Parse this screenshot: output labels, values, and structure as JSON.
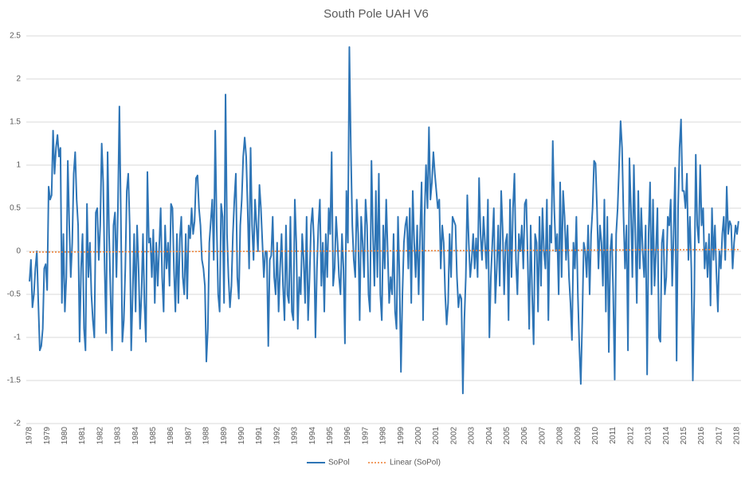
{
  "chart_data": {
    "type": "line",
    "title": "South Pole UAH V6",
    "categories": [
      "1978",
      null,
      null,
      null,
      null,
      null,
      null,
      null,
      null,
      null,
      null,
      null,
      "1979",
      null,
      null,
      null,
      null,
      null,
      null,
      null,
      null,
      null,
      null,
      null,
      "1980",
      null,
      null,
      null,
      null,
      null,
      null,
      null,
      null,
      null,
      null,
      null,
      "1981",
      null,
      null,
      null,
      null,
      null,
      null,
      null,
      null,
      null,
      null,
      null,
      "1982",
      null,
      null,
      null,
      null,
      null,
      null,
      null,
      null,
      null,
      null,
      null,
      "1983",
      null,
      null,
      null,
      null,
      null,
      null,
      null,
      null,
      null,
      null,
      null,
      "1984",
      null,
      null,
      null,
      null,
      null,
      null,
      null,
      null,
      null,
      null,
      null,
      "1985",
      null,
      null,
      null,
      null,
      null,
      null,
      null,
      null,
      null,
      null,
      null,
      "1986",
      null,
      null,
      null,
      null,
      null,
      null,
      null,
      null,
      null,
      null,
      null,
      "1987",
      null,
      null,
      null,
      null,
      null,
      null,
      null,
      null,
      null,
      null,
      null,
      "1988",
      null,
      null,
      null,
      null,
      null,
      null,
      null,
      null,
      null,
      null,
      null,
      "1989",
      null,
      null,
      null,
      null,
      null,
      null,
      null,
      null,
      null,
      null,
      null,
      "1990",
      null,
      null,
      null,
      null,
      null,
      null,
      null,
      null,
      null,
      null,
      null,
      "1991",
      null,
      null,
      null,
      null,
      null,
      null,
      null,
      null,
      null,
      null,
      null,
      "1992",
      null,
      null,
      null,
      null,
      null,
      null,
      null,
      null,
      null,
      null,
      null,
      "1993",
      null,
      null,
      null,
      null,
      null,
      null,
      null,
      null,
      null,
      null,
      null,
      "1994",
      null,
      null,
      null,
      null,
      null,
      null,
      null,
      null,
      null,
      null,
      null,
      "1995",
      null,
      null,
      null,
      null,
      null,
      null,
      null,
      null,
      null,
      null,
      null,
      "1996",
      null,
      null,
      null,
      null,
      null,
      null,
      null,
      null,
      null,
      null,
      null,
      "1997",
      null,
      null,
      null,
      null,
      null,
      null,
      null,
      null,
      null,
      null,
      null,
      "1998",
      null,
      null,
      null,
      null,
      null,
      null,
      null,
      null,
      null,
      null,
      null,
      "1999",
      null,
      null,
      null,
      null,
      null,
      null,
      null,
      null,
      null,
      null,
      null,
      "2000",
      null,
      null,
      null,
      null,
      null,
      null,
      null,
      null,
      null,
      null,
      null,
      "2001",
      null,
      null,
      null,
      null,
      null,
      null,
      null,
      null,
      null,
      null,
      null,
      "2002",
      null,
      null,
      null,
      null,
      null,
      null,
      null,
      null,
      null,
      null,
      null,
      "2003",
      null,
      null,
      null,
      null,
      null,
      null,
      null,
      null,
      null,
      null,
      null,
      "2004",
      null,
      null,
      null,
      null,
      null,
      null,
      null,
      null,
      null,
      null,
      null,
      "2005",
      null,
      null,
      null,
      null,
      null,
      null,
      null,
      null,
      null,
      null,
      null,
      "2006",
      null,
      null,
      null,
      null,
      null,
      null,
      null,
      null,
      null,
      null,
      null,
      "2007",
      null,
      null,
      null,
      null,
      null,
      null,
      null,
      null,
      null,
      null,
      null,
      "2008",
      null,
      null,
      null,
      null,
      null,
      null,
      null,
      null,
      null,
      null,
      null,
      "2009",
      null,
      null,
      null,
      null,
      null,
      null,
      null,
      null,
      null,
      null,
      null,
      "2010",
      null,
      null,
      null,
      null,
      null,
      null,
      null,
      null,
      null,
      null,
      null,
      "2011",
      null,
      null,
      null,
      null,
      null,
      null,
      null,
      null,
      null,
      null,
      null,
      "2012",
      null,
      null,
      null,
      null,
      null,
      null,
      null,
      null,
      null,
      null,
      null,
      "2013",
      null,
      null,
      null,
      null,
      null,
      null,
      null,
      null,
      null,
      null,
      null,
      "2014",
      null,
      null,
      null,
      null,
      null,
      null,
      null,
      null,
      null,
      null,
      null,
      "2015",
      null,
      null,
      null,
      null,
      null,
      null,
      null,
      null,
      null,
      null,
      null,
      "2016",
      null,
      null,
      null,
      null,
      null,
      null,
      null,
      null,
      null,
      null,
      null,
      "2017",
      null,
      null,
      null,
      null,
      null,
      null,
      null,
      null,
      null,
      null,
      null,
      "2018",
      null
    ],
    "series": [
      {
        "name": "SoPol",
        "color": "#2e75b6",
        "values": [
          -0.35,
          -0.1,
          -0.65,
          -0.5,
          -0.2,
          0.0,
          -0.6,
          -1.15,
          -1.1,
          -0.9,
          -0.2,
          -0.15,
          -0.45,
          0.75,
          0.6,
          0.65,
          1.4,
          0.9,
          1.2,
          1.35,
          1.1,
          1.2,
          -0.6,
          0.2,
          -0.7,
          -0.3,
          1.05,
          0.3,
          -0.3,
          0.1,
          0.9,
          1.15,
          0.6,
          0.3,
          -1.05,
          -0.2,
          0.2,
          -0.9,
          -1.15,
          0.55,
          -0.3,
          0.1,
          -0.5,
          -0.8,
          -1.0,
          0.45,
          0.5,
          -0.1,
          0.3,
          1.25,
          0.8,
          -0.2,
          -0.95,
          1.15,
          0.2,
          -0.5,
          -1.15,
          0.3,
          0.45,
          -0.3,
          0.5,
          1.68,
          0.4,
          -1.05,
          -0.8,
          -0.2,
          0.7,
          0.9,
          0.3,
          -1.15,
          -0.5,
          0.2,
          -0.7,
          0.3,
          -0.2,
          -0.9,
          -0.5,
          0.2,
          -0.6,
          -1.05,
          0.92,
          0.1,
          0.15,
          -0.3,
          0.25,
          -0.6,
          0.1,
          -0.4,
          0.05,
          0.5,
          -0.3,
          -0.7,
          0.3,
          -0.2,
          0.1,
          -0.4,
          0.55,
          0.5,
          -0.2,
          -0.7,
          0.2,
          -0.6,
          0.15,
          0.4,
          -0.3,
          -0.5,
          0.2,
          -0.55,
          0.3,
          0.15,
          0.5,
          0.2,
          0.35,
          0.85,
          0.88,
          0.5,
          0.3,
          -0.1,
          -0.2,
          -0.4,
          -1.28,
          -0.9,
          0.1,
          0.35,
          0.6,
          -0.1,
          1.4,
          0.3,
          -0.5,
          -0.7,
          0.55,
          0.4,
          -0.6,
          1.82,
          0.2,
          -0.3,
          -0.65,
          -0.4,
          0.2,
          0.6,
          0.9,
          -0.3,
          -0.55,
          0.3,
          0.6,
          1.1,
          1.32,
          1.1,
          0.5,
          -0.2,
          1.2,
          0.3,
          -0.1,
          0.6,
          0.3,
          0.0,
          0.77,
          0.5,
          0.1,
          -0.3,
          0.0,
          0.0,
          -1.1,
          -0.1,
          -0.05,
          0.4,
          -0.3,
          -0.5,
          0.1,
          -0.7,
          -0.2,
          0.2,
          -0.4,
          -0.8,
          0.3,
          -0.5,
          -0.6,
          0.4,
          -0.7,
          -0.8,
          0.6,
          0.1,
          -0.9,
          -0.3,
          -0.5,
          0.2,
          -0.1,
          -0.6,
          0.4,
          -0.8,
          -0.3,
          0.3,
          0.5,
          0.1,
          -1.0,
          -0.2,
          0.3,
          0.6,
          -0.4,
          0.1,
          -0.7,
          0.2,
          -0.3,
          0.5,
          0.2,
          1.15,
          -0.4,
          -0.2,
          0.4,
          0.1,
          -0.3,
          -0.5,
          0.2,
          -0.2,
          -1.07,
          0.7,
          0.1,
          2.37,
          1.2,
          0.3,
          -0.1,
          -0.3,
          0.6,
          0.2,
          -0.8,
          0.4,
          0.1,
          -0.3,
          0.6,
          0.3,
          -0.5,
          -0.7,
          1.05,
          0.2,
          -0.4,
          0.7,
          -0.3,
          0.9,
          -0.5,
          -0.8,
          0.3,
          -0.2,
          0.6,
          0.0,
          -0.6,
          -0.3,
          -0.5,
          0.2,
          -0.7,
          -0.9,
          0.4,
          -0.3,
          -1.4,
          -0.5,
          0.1,
          0.3,
          0.4,
          -0.2,
          0.5,
          -0.6,
          0.7,
          0.1,
          -0.3,
          0.3,
          -0.5,
          0.2,
          0.8,
          -0.8,
          0.4,
          1.0,
          0.5,
          1.44,
          0.6,
          0.8,
          1.15,
          0.9,
          0.7,
          0.5,
          0.6,
          -0.2,
          0.3,
          0.1,
          -0.5,
          -0.85,
          -0.6,
          0.2,
          -0.3,
          0.4,
          0.35,
          0.3,
          -0.3,
          -0.65,
          -0.5,
          -0.55,
          -1.65,
          -0.8,
          -0.3,
          0.65,
          0.1,
          -0.3,
          -0.1,
          0.2,
          -0.2,
          0.15,
          -0.3,
          0.85,
          0.2,
          -0.1,
          0.4,
          0.1,
          -0.2,
          0.6,
          -1.0,
          -0.3,
          0.1,
          0.5,
          -0.6,
          -0.2,
          0.3,
          -0.4,
          0.7,
          0.25,
          -0.5,
          0.1,
          0.2,
          -0.8,
          0.6,
          -0.3,
          0.5,
          0.9,
          -0.1,
          -0.5,
          0.2,
          0.0,
          0.3,
          -0.2,
          0.55,
          0.6,
          -0.1,
          -0.9,
          0.3,
          -0.5,
          -1.08,
          0.2,
          0.1,
          -0.7,
          0.4,
          -0.4,
          0.5,
          0.0,
          -0.2,
          0.6,
          -0.8,
          0.3,
          0.1,
          1.28,
          0.5,
          0.0,
          0.2,
          -0.5,
          0.8,
          -0.3,
          0.7,
          0.4,
          -0.1,
          0.3,
          -0.3,
          -0.6,
          -1.03,
          0.1,
          -0.2,
          0.4,
          -0.5,
          -1.1,
          -1.54,
          -0.8,
          0.1,
          0.0,
          -0.3,
          0.3,
          -0.5,
          0.2,
          0.5,
          1.05,
          1.02,
          0.5,
          -0.2,
          0.3,
          0.1,
          -0.4,
          0.6,
          -0.7,
          0.4,
          -1.17,
          0.0,
          0.2,
          -0.5,
          -1.49,
          0.2,
          0.5,
          1.0,
          1.51,
          1.2,
          0.4,
          -0.2,
          0.3,
          -1.15,
          1.08,
          0.5,
          -0.3,
          1.0,
          0.2,
          -0.6,
          0.7,
          -0.2,
          0.5,
          0.0,
          -0.3,
          0.3,
          -1.43,
          0.2,
          0.8,
          -0.5,
          0.6,
          -0.4,
          0.0,
          0.5,
          -1.0,
          -1.05,
          0.1,
          0.25,
          -0.5,
          -0.3,
          0.4,
          0.3,
          0.6,
          -0.4,
          0.2,
          0.97,
          -1.27,
          0.5,
          1.2,
          1.53,
          0.7,
          0.7,
          0.5,
          0.9,
          -0.1,
          0.4,
          -0.2,
          -1.5,
          -0.5,
          1.12,
          0.3,
          0.1,
          1.0,
          0.3,
          0.5,
          -0.2,
          0.1,
          -0.3,
          0.2,
          -0.63,
          0.5,
          -0.1,
          0.3,
          -0.25,
          -0.7,
          0.0,
          -0.2,
          0.2,
          0.4,
          -0.1,
          0.75,
          0.2,
          0.35,
          0.3,
          -0.2,
          0.1,
          0.3,
          0.2,
          0.35
        ]
      }
    ],
    "trend": {
      "name": "Linear (SoPol)",
      "color": "#ed7d31",
      "start": -0.01,
      "end": 0.02
    },
    "ylim": [
      -2,
      2.5
    ],
    "yticks": [
      -2,
      -1.5,
      -1,
      -0.5,
      0,
      0.5,
      1,
      1.5,
      2,
      2.5
    ],
    "grid": true,
    "legend": "bottom"
  }
}
